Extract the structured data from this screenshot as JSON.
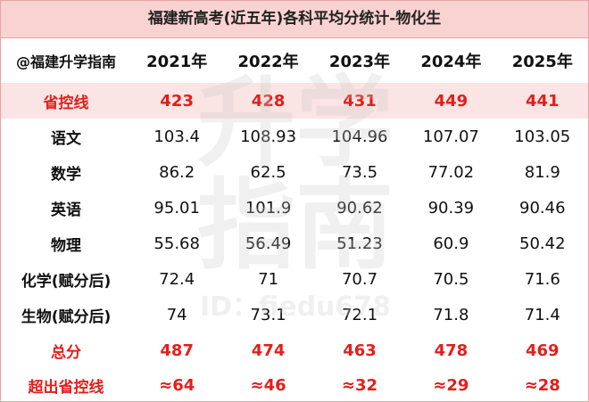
{
  "title": "福建新高考(近五年)各科平均分统计-物化生",
  "watermark": {
    "main": "升学指南",
    "id": "ID：fiedu678"
  },
  "table": {
    "header": [
      "@福建升学指南",
      "2021年",
      "2022年",
      "2023年",
      "2024年",
      "2025年"
    ],
    "rows": [
      [
        "省控线",
        "423",
        "428",
        "431",
        "449",
        "441"
      ],
      [
        "语文",
        "103.4",
        "108.93",
        "104.96",
        "107.07",
        "103.05"
      ],
      [
        "数学",
        "86.2",
        "62.5",
        "73.5",
        "77.02",
        "81.9"
      ],
      [
        "英语",
        "95.01",
        "101.9",
        "90.62",
        "90.39",
        "90.46"
      ],
      [
        "物理",
        "55.68",
        "56.49",
        "51.23",
        "60.9",
        "50.42"
      ],
      [
        "化学(赋分后)",
        "72.4",
        "71",
        "70.7",
        "70.5",
        "71.6"
      ],
      [
        "生物(赋分后)",
        "74",
        "73.1",
        "72.1",
        "71.8",
        "71.4"
      ],
      [
        "总分",
        "487",
        "474",
        "463",
        "478",
        "469"
      ],
      [
        "超出省控线",
        "≈64",
        "≈46",
        "≈32",
        "≈29",
        "≈28"
      ]
    ]
  }
}
